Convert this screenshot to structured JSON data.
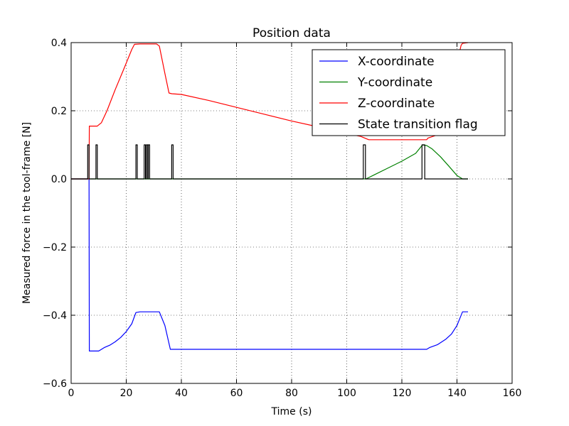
{
  "chart_data": {
    "type": "line",
    "title": "Position data",
    "xlabel": "Time (s)",
    "ylabel": "Measured force in the tool-frame [N]",
    "xlim": [
      0,
      160
    ],
    "ylim": [
      -0.6,
      0.4
    ],
    "xticks": [
      0,
      20,
      40,
      60,
      80,
      100,
      120,
      140,
      160
    ],
    "yticks": [
      -0.6,
      -0.4,
      -0.2,
      0.0,
      0.2,
      0.4
    ],
    "xtick_labels": [
      "0",
      "20",
      "40",
      "60",
      "80",
      "100",
      "120",
      "140",
      "160"
    ],
    "ytick_labels": [
      "−0.6",
      "−0.4",
      "−0.2",
      "0.0",
      "0.2",
      "0.4"
    ],
    "grid": true,
    "legend_position": "top-right",
    "series": [
      {
        "name": "X-coordinate",
        "color": "#0000ff",
        "x": [
          0,
          6.5,
          6.6,
          7,
          10,
          12,
          14,
          16,
          18,
          20,
          22,
          23.5,
          25,
          31,
          32,
          34,
          36,
          40,
          60,
          80,
          100,
          120,
          129,
          130,
          133,
          136,
          138,
          140,
          141,
          142,
          144
        ],
        "y": [
          0,
          0,
          -0.505,
          -0.505,
          -0.505,
          -0.495,
          -0.488,
          -0.478,
          -0.465,
          -0.448,
          -0.425,
          -0.392,
          -0.39,
          -0.39,
          -0.39,
          -0.43,
          -0.5,
          -0.5,
          -0.5,
          -0.5,
          -0.5,
          -0.5,
          -0.5,
          -0.495,
          -0.486,
          -0.47,
          -0.455,
          -0.43,
          -0.41,
          -0.39,
          -0.39
        ]
      },
      {
        "name": "Y-coordinate",
        "color": "#008000",
        "x": [
          0,
          106,
          107,
          110,
          115,
          120,
          125,
          127.5,
          129,
          131,
          134,
          137,
          140,
          142,
          144
        ],
        "y": [
          0,
          0,
          0,
          0.012,
          0.032,
          0.052,
          0.075,
          0.1,
          0.098,
          0.088,
          0.065,
          0.038,
          0.01,
          0,
          0
        ]
      },
      {
        "name": "Z-coordinate",
        "color": "#ff0000",
        "x": [
          0,
          6.5,
          6.6,
          7,
          9.5,
          11,
          13,
          16,
          19,
          22,
          23,
          25,
          31,
          32,
          34,
          35.5,
          36.5,
          40,
          50,
          60,
          70,
          80,
          90,
          100,
          105,
          108,
          120,
          129,
          129.5,
          135,
          140.5,
          141,
          141.5,
          142,
          144
        ],
        "y": [
          0,
          0,
          0.155,
          0.155,
          0.155,
          0.165,
          0.2,
          0.262,
          0.32,
          0.38,
          0.395,
          0.396,
          0.396,
          0.39,
          0.31,
          0.252,
          0.25,
          0.248,
          0.23,
          0.21,
          0.19,
          0.17,
          0.152,
          0.133,
          0.125,
          0.115,
          0.115,
          0.115,
          0.12,
          0.135,
          0.17,
          0.375,
          0.392,
          0.398,
          0.4
        ]
      },
      {
        "name": "State transition flag",
        "color": "#000000",
        "step": true,
        "x": [
          0,
          6,
          6,
          6.5,
          6.5,
          9,
          9,
          9.5,
          9.5,
          23.5,
          23.5,
          24,
          24,
          26.5,
          26.5,
          27,
          27,
          27.3,
          27.3,
          27.8,
          27.8,
          28,
          28,
          28.5,
          28.5,
          36.5,
          36.5,
          37,
          37,
          106,
          106,
          106.8,
          106.8,
          127.3,
          127.3,
          128.3,
          128.3,
          144
        ],
        "y": [
          0,
          0,
          0.1,
          0.1,
          0,
          0,
          0.1,
          0.1,
          0,
          0,
          0.1,
          0.1,
          0,
          0,
          0.1,
          0.1,
          0,
          0,
          0.1,
          0.1,
          0,
          0,
          0.1,
          0.1,
          0,
          0,
          0.1,
          0.1,
          0,
          0,
          0.1,
          0.1,
          0,
          0,
          0.1,
          0.1,
          0,
          0
        ]
      }
    ]
  }
}
